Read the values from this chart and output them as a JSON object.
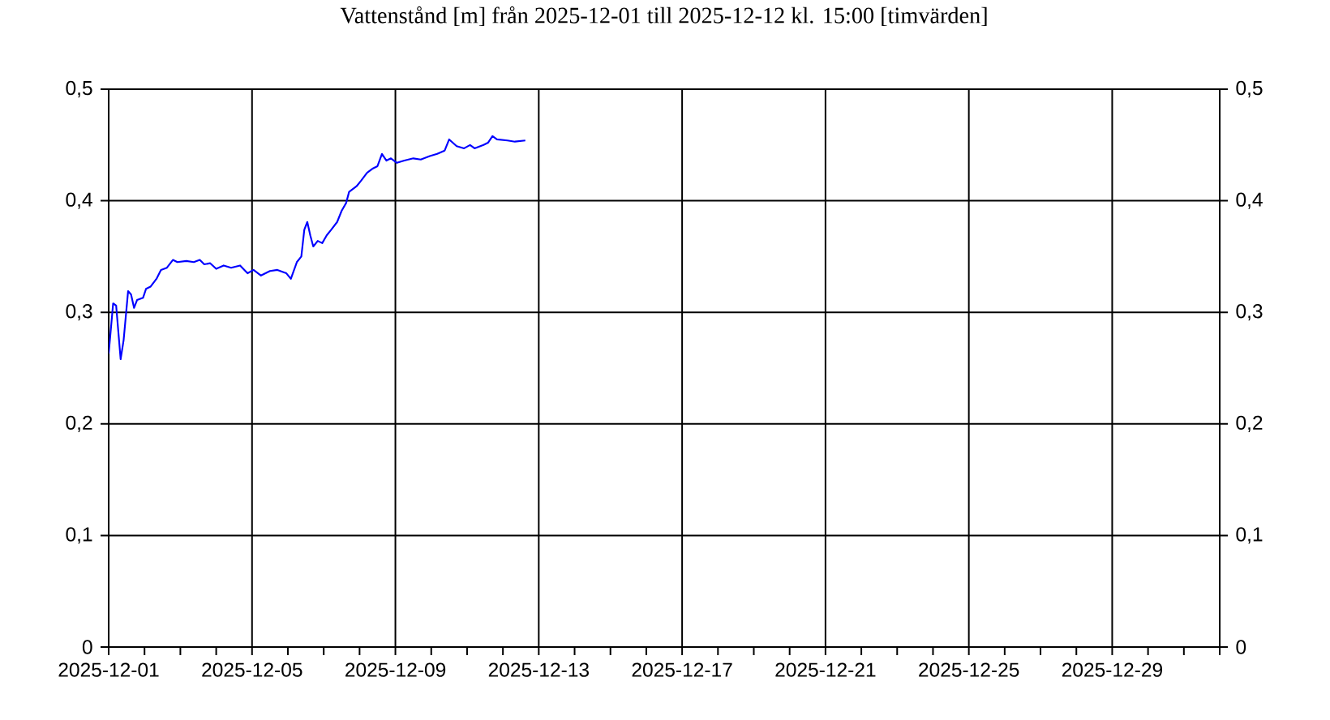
{
  "chart_data": {
    "type": "line",
    "title": "Vattenstånd [m] från 2025-12-01 till 2025-12-12 kl. 15:00 [timvärden]",
    "x": [
      "2025-12-01T00:00",
      "2025-12-01T03:00",
      "2025-12-01T05:00",
      "2025-12-01T08:00",
      "2025-12-01T10:00",
      "2025-12-01T13:00",
      "2025-12-01T15:00",
      "2025-12-01T17:00",
      "2025-12-01T19:00",
      "2025-12-01T23:00",
      "2025-12-02T01:00",
      "2025-12-02T04:00",
      "2025-12-02T08:00",
      "2025-12-02T11:00",
      "2025-12-02T15:00",
      "2025-12-02T19:00",
      "2025-12-02T22:00",
      "2025-12-03T04:00",
      "2025-12-03T09:00",
      "2025-12-03T13:00",
      "2025-12-03T16:00",
      "2025-12-03T20:00",
      "2025-12-04T00:00",
      "2025-12-04T05:00",
      "2025-12-04T10:00",
      "2025-12-04T16:00",
      "2025-12-04T21:00",
      "2025-12-05T01:00",
      "2025-12-05T06:00",
      "2025-12-05T12:00",
      "2025-12-05T17:00",
      "2025-12-05T23:00",
      "2025-12-06T02:00",
      "2025-12-06T06:00",
      "2025-12-06T09:00",
      "2025-12-06T11:00",
      "2025-12-06T13:00",
      "2025-12-06T15:00",
      "2025-12-06T17:00",
      "2025-12-06T20:00",
      "2025-12-06T23:00",
      "2025-12-07T02:00",
      "2025-12-07T05:00",
      "2025-12-07T09:00",
      "2025-12-07T12:00",
      "2025-12-07T15:00",
      "2025-12-07T17:00",
      "2025-12-07T22:00",
      "2025-12-08T01:00",
      "2025-12-08T05:00",
      "2025-12-08T09:00",
      "2025-12-08T12:00",
      "2025-12-08T15:00",
      "2025-12-08T18:00",
      "2025-12-08T21:00",
      "2025-12-09T01:00",
      "2025-12-09T06:00",
      "2025-12-09T12:00",
      "2025-12-09T17:00",
      "2025-12-09T23:00",
      "2025-12-10T04:00",
      "2025-12-10T09:00",
      "2025-12-10T12:00",
      "2025-12-10T17:00",
      "2025-12-10T22:00",
      "2025-12-11T02:00",
      "2025-12-11T05:00",
      "2025-12-11T11:00",
      "2025-12-11T14:00",
      "2025-12-11T17:00",
      "2025-12-11T20:00",
      "2025-12-12T03:00",
      "2025-12-12T08:00",
      "2025-12-12T15:00"
    ],
    "values": [
      0.263,
      0.308,
      0.306,
      0.258,
      0.275,
      0.319,
      0.316,
      0.304,
      0.311,
      0.313,
      0.321,
      0.323,
      0.33,
      0.338,
      0.34,
      0.347,
      0.345,
      0.346,
      0.345,
      0.347,
      0.343,
      0.344,
      0.339,
      0.342,
      0.34,
      0.342,
      0.335,
      0.338,
      0.333,
      0.337,
      0.338,
      0.335,
      0.33,
      0.345,
      0.35,
      0.374,
      0.381,
      0.369,
      0.359,
      0.364,
      0.362,
      0.369,
      0.374,
      0.381,
      0.391,
      0.398,
      0.408,
      0.413,
      0.418,
      0.425,
      0.429,
      0.431,
      0.442,
      0.436,
      0.438,
      0.434,
      0.436,
      0.438,
      0.437,
      0.44,
      0.442,
      0.445,
      0.455,
      0.449,
      0.447,
      0.45,
      0.447,
      0.45,
      0.452,
      0.458,
      0.455,
      0.454,
      0.453,
      0.454
    ],
    "color": "#0000ff",
    "marker": "none",
    "line_style": "solid",
    "grid": true,
    "xlim": [
      "2025-12-01",
      "2026-01-01"
    ],
    "xticks": [
      "2025-12-01",
      {
        "value": "2025-12-02",
        "label": null
      },
      {
        "value": "2025-12-03",
        "label": null
      },
      {
        "value": "2025-12-04",
        "label": null
      },
      "2025-12-05",
      {
        "value": "2025-12-06",
        "label": null
      },
      {
        "value": "2025-12-07",
        "label": null
      },
      {
        "value": "2025-12-08",
        "label": null
      },
      "2025-12-09",
      {
        "value": "2025-12-10",
        "label": null
      },
      {
        "value": "2025-12-11",
        "label": null
      },
      {
        "value": "2025-12-12",
        "label": null
      },
      "2025-12-13",
      {
        "value": "2025-12-14",
        "label": null
      },
      {
        "value": "2025-12-15",
        "label": null
      },
      {
        "value": "2025-12-16",
        "label": null
      },
      "2025-12-17",
      {
        "value": "2025-12-18",
        "label": null
      },
      {
        "value": "2025-12-19",
        "label": null
      },
      {
        "value": "2025-12-20",
        "label": null
      },
      "2025-12-21",
      {
        "value": "2025-12-22",
        "label": null
      },
      {
        "value": "2025-12-23",
        "label": null
      },
      {
        "value": "2025-12-24",
        "label": null
      },
      "2025-12-25",
      {
        "value": "2025-12-26",
        "label": null
      },
      {
        "value": "2025-12-27",
        "label": null
      },
      {
        "value": "2025-12-28",
        "label": null
      },
      "2025-12-29",
      {
        "value": "2025-12-30",
        "label": null
      },
      {
        "value": "2025-12-31",
        "label": null
      },
      {
        "value": "2026-01-01",
        "label": null
      }
    ],
    "ylim": [
      0,
      0.5
    ],
    "yticks": [
      0,
      {
        "value": 0.1,
        "label": "0,1"
      },
      {
        "value": 0.2,
        "label": "0,2"
      },
      {
        "value": 0.3,
        "label": "0,3"
      },
      {
        "value": 0.4,
        "label": "0,4"
      },
      {
        "value": 0.5,
        "label": "0,5"
      }
    ],
    "y2lim": [
      0,
      0.5
    ],
    "y2ticks": [
      0,
      {
        "value": 0.1,
        "label": "0,1"
      },
      {
        "value": 0.2,
        "label": "0,2"
      },
      {
        "value": 0.3,
        "label": "0,3"
      },
      {
        "value": 0.4,
        "label": "0,4"
      },
      {
        "value": 0.5,
        "label": "0,5"
      }
    ]
  }
}
